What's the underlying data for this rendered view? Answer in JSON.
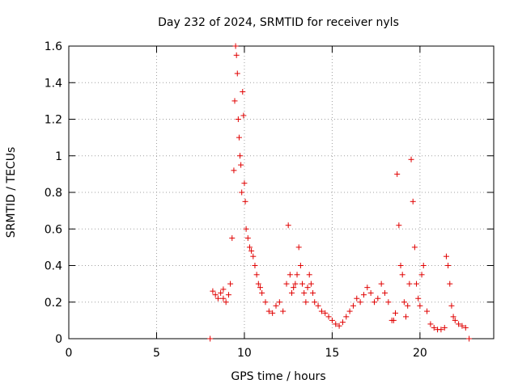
{
  "chart_data": {
    "type": "scatter",
    "title": "Day 232 of 2024, SRMTID for receiver nyls",
    "xlabel": "GPS time / hours",
    "ylabel": "SRMTID / TECUs",
    "xlim": [
      0,
      24.2
    ],
    "ylim": [
      0,
      1.6
    ],
    "xticks": [
      0,
      5,
      10,
      15,
      20
    ],
    "xtick_labels": [
      "0",
      "5",
      "10",
      "15",
      "20"
    ],
    "yticks": [
      0,
      0.2,
      0.4,
      0.6,
      0.8,
      1.0,
      1.2,
      1.4,
      1.6
    ],
    "ytick_labels": [
      "0",
      "0.2",
      "0.4",
      "0.6",
      "0.8",
      "1",
      "1.2",
      "1.4",
      "1.6"
    ],
    "grid": true,
    "marker": "plus",
    "color": "#e00000",
    "series": [
      {
        "name": "SRMTID",
        "x": [
          8.05,
          8.8,
          8.2,
          8.35,
          8.5,
          8.65,
          8.8,
          8.95,
          9.1,
          9.2,
          9.3,
          9.4,
          9.45,
          9.5,
          9.55,
          9.6,
          9.65,
          9.7,
          9.75,
          9.8,
          9.85,
          9.9,
          9.95,
          10.0,
          10.05,
          10.1,
          10.2,
          10.3,
          10.4,
          10.5,
          10.6,
          10.7,
          10.8,
          10.9,
          11.0,
          11.2,
          11.4,
          11.6,
          11.8,
          12.0,
          12.2,
          12.4,
          12.5,
          12.6,
          12.7,
          12.8,
          12.9,
          13.0,
          13.1,
          13.2,
          13.3,
          13.4,
          13.5,
          13.6,
          13.7,
          13.8,
          13.9,
          14.0,
          14.2,
          14.4,
          14.6,
          14.8,
          15.0,
          15.2,
          15.4,
          15.6,
          15.8,
          16.0,
          16.2,
          16.4,
          16.6,
          16.8,
          17.0,
          17.2,
          17.4,
          17.6,
          17.8,
          18.0,
          18.2,
          18.4,
          18.5,
          18.6,
          18.7,
          18.8,
          18.9,
          19.0,
          19.1,
          19.2,
          19.3,
          19.4,
          19.5,
          19.6,
          19.7,
          19.8,
          19.9,
          20.0,
          20.1,
          20.2,
          20.4,
          20.6,
          20.8,
          21.0,
          21.2,
          21.4,
          21.5,
          21.6,
          21.7,
          21.8,
          21.9,
          22.0,
          22.2,
          22.4,
          22.6,
          22.8
        ],
        "y": [
          0.0,
          0.22,
          0.26,
          0.24,
          0.22,
          0.25,
          0.27,
          0.2,
          0.24,
          0.3,
          0.55,
          0.92,
          1.3,
          1.6,
          1.55,
          1.45,
          1.2,
          1.1,
          1.0,
          0.95,
          0.8,
          1.35,
          1.22,
          0.85,
          0.75,
          0.6,
          0.55,
          0.5,
          0.48,
          0.45,
          0.4,
          0.35,
          0.3,
          0.28,
          0.25,
          0.2,
          0.15,
          0.14,
          0.18,
          0.2,
          0.15,
          0.3,
          0.62,
          0.35,
          0.25,
          0.28,
          0.3,
          0.35,
          0.5,
          0.4,
          0.3,
          0.25,
          0.2,
          0.28,
          0.35,
          0.3,
          0.25,
          0.2,
          0.18,
          0.15,
          0.14,
          0.12,
          0.1,
          0.08,
          0.07,
          0.09,
          0.12,
          0.15,
          0.18,
          0.22,
          0.2,
          0.24,
          0.28,
          0.25,
          0.2,
          0.22,
          0.3,
          0.25,
          0.2,
          0.1,
          0.1,
          0.14,
          0.9,
          0.62,
          0.4,
          0.35,
          0.2,
          0.12,
          0.18,
          0.3,
          0.98,
          0.75,
          0.5,
          0.3,
          0.22,
          0.18,
          0.35,
          0.4,
          0.15,
          0.08,
          0.06,
          0.05,
          0.05,
          0.06,
          0.45,
          0.4,
          0.3,
          0.18,
          0.12,
          0.1,
          0.08,
          0.07,
          0.06,
          0.0
        ]
      }
    ]
  }
}
